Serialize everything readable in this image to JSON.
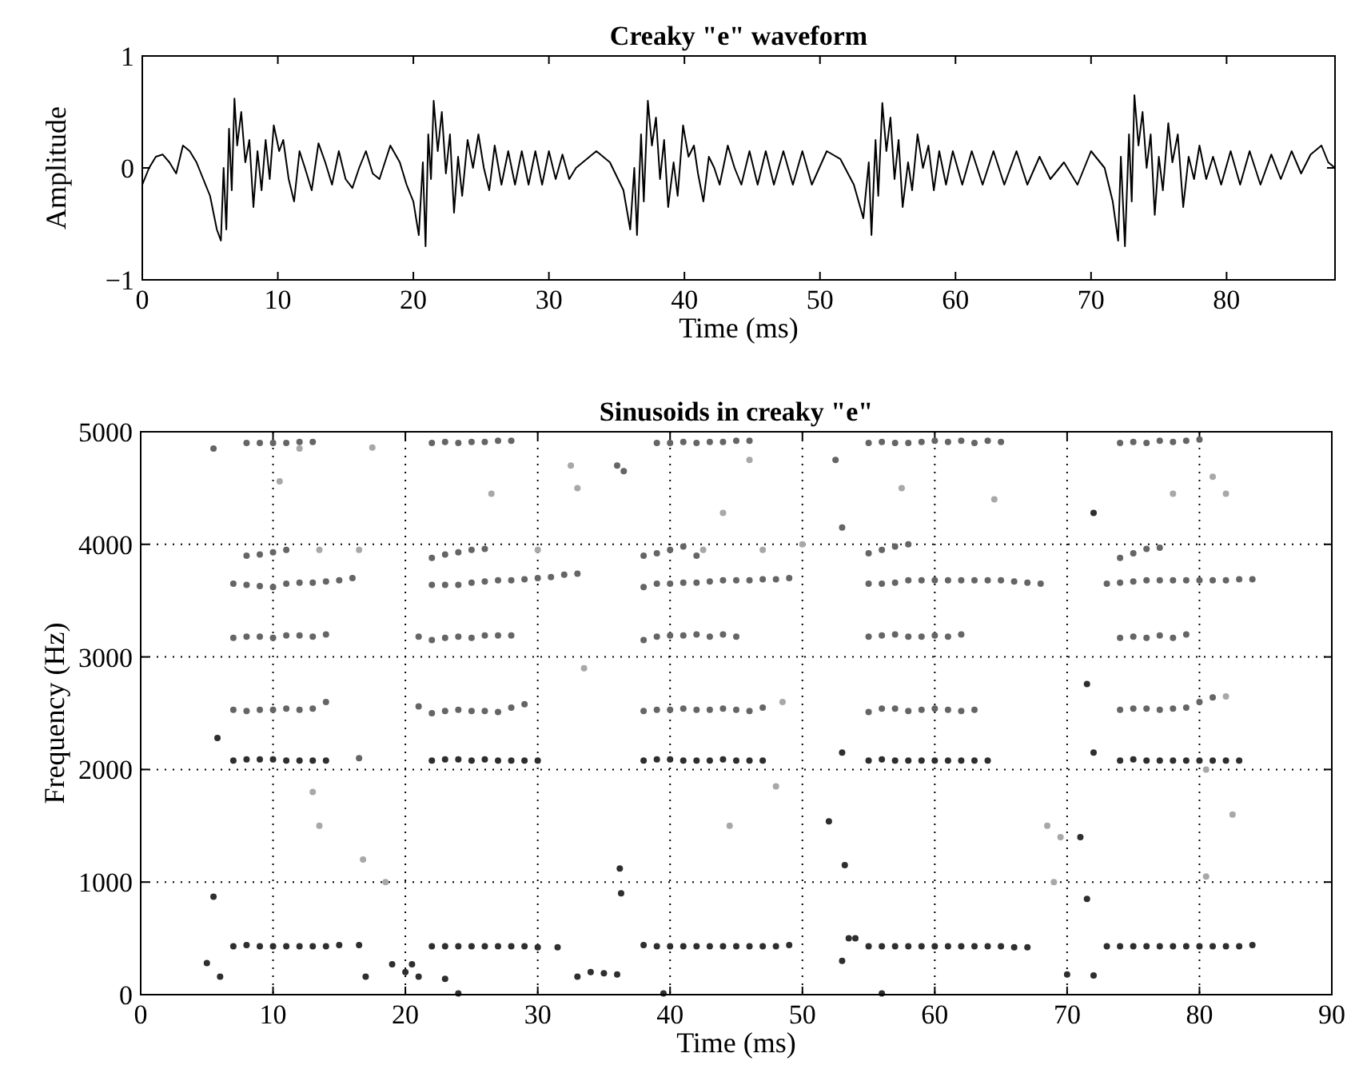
{
  "chart_data": [
    {
      "type": "line",
      "title": "Creaky \"e\" waveform",
      "xlabel": "Time (ms)",
      "ylabel": "Amplitude",
      "xlim": [
        0,
        88
      ],
      "xticks": [
        0,
        10,
        20,
        30,
        40,
        50,
        60,
        70,
        80
      ],
      "ylim": [
        -1,
        1
      ],
      "yticks": [
        {
          "value": -1,
          "label": "−1"
        },
        0,
        1
      ],
      "grid": false,
      "marker": "none",
      "line_style": "solid",
      "series": [
        {
          "color": "#000000",
          "x": [
            0,
            0.5,
            1,
            1.5,
            2,
            2.5,
            3,
            3.5,
            4,
            4.5,
            5,
            5.5,
            5.8,
            6,
            6.2,
            6.4,
            6.6,
            6.8,
            7,
            7.3,
            7.6,
            7.9,
            8.2,
            8.5,
            8.8,
            9.1,
            9.4,
            9.7,
            10.1,
            10.4,
            10.8,
            11.2,
            11.6,
            12,
            12.5,
            13,
            13.5,
            14,
            14.5,
            15,
            15.5,
            16,
            16.5,
            17,
            17.5,
            18.3,
            19,
            19.5,
            20,
            20.4,
            20.7,
            20.9,
            21.1,
            21.3,
            21.5,
            21.8,
            22.1,
            22.4,
            22.7,
            23,
            23.3,
            23.6,
            24,
            24.4,
            24.8,
            25.2,
            25.6,
            26,
            26.5,
            27,
            27.5,
            28,
            28.5,
            29,
            29.5,
            30,
            30.5,
            31,
            31.5,
            32,
            33.5,
            34.5,
            35.5,
            36,
            36.3,
            36.5,
            36.8,
            37,
            37.3,
            37.6,
            37.9,
            38.2,
            38.5,
            38.8,
            39.2,
            39.5,
            39.9,
            40.3,
            40.7,
            41,
            41.4,
            41.8,
            42.2,
            42.6,
            43.2,
            43.7,
            44.2,
            44.8,
            45.4,
            46,
            46.6,
            47.3,
            48,
            48.7,
            49.4,
            50.5,
            51.5,
            52.5,
            53.2,
            53.6,
            53.8,
            54.1,
            54.3,
            54.6,
            54.9,
            55.2,
            55.5,
            55.8,
            56.1,
            56.5,
            56.8,
            57.2,
            57.6,
            58,
            58.4,
            58.8,
            59.3,
            59.8,
            60.5,
            61.2,
            62,
            62.8,
            63.6,
            64.5,
            65.3,
            66.2,
            67,
            68,
            69,
            70,
            71,
            71.6,
            72,
            72.2,
            72.5,
            72.8,
            73,
            73.2,
            73.5,
            73.8,
            74.1,
            74.4,
            74.7,
            75,
            75.3,
            75.7,
            76,
            76.4,
            76.8,
            77.2,
            77.6,
            78,
            78.5,
            79,
            79.6,
            80.3,
            81,
            81.7,
            82.5,
            83.3,
            84,
            84.8,
            85.5,
            86.2,
            87,
            87.5,
            88
          ],
          "values": [
            -0.15,
            0,
            0.1,
            0.12,
            0.05,
            -0.05,
            0.2,
            0.15,
            0.05,
            -0.1,
            -0.25,
            -0.55,
            -0.65,
            0,
            -0.55,
            0.35,
            -0.2,
            0.62,
            0.2,
            0.5,
            0.05,
            0.25,
            -0.35,
            0.15,
            -0.2,
            0.25,
            -0.1,
            0.38,
            0.15,
            0.25,
            -0.1,
            -0.3,
            0.15,
            0,
            -0.2,
            0.22,
            0.05,
            -0.15,
            0.15,
            -0.1,
            -0.18,
            0,
            0.15,
            -0.05,
            -0.1,
            0.2,
            0.05,
            -0.15,
            -0.3,
            -0.6,
            0.05,
            -0.7,
            0.3,
            -0.1,
            0.6,
            0.15,
            0.5,
            -0.05,
            0.3,
            -0.4,
            0.1,
            -0.25,
            0.25,
            0,
            0.3,
            0,
            -0.2,
            0.2,
            -0.15,
            0.15,
            -0.15,
            0.15,
            -0.15,
            0.15,
            -0.15,
            0.15,
            -0.1,
            0.12,
            -0.1,
            0,
            0.15,
            0.05,
            -0.2,
            -0.55,
            0,
            -0.6,
            0.3,
            -0.3,
            0.6,
            0.2,
            0.45,
            -0.1,
            0.25,
            -0.35,
            0.05,
            -0.25,
            0.38,
            0.1,
            0.2,
            -0.05,
            -0.3,
            0.1,
            0,
            -0.15,
            0.2,
            0,
            -0.15,
            0.15,
            -0.15,
            0.15,
            -0.15,
            0.15,
            -0.15,
            0.15,
            -0.15,
            0.15,
            0.08,
            -0.15,
            -0.45,
            0.05,
            -0.6,
            0.25,
            -0.25,
            0.58,
            0.15,
            0.45,
            -0.1,
            0.25,
            -0.35,
            0.05,
            -0.2,
            0.3,
            0,
            0.2,
            -0.2,
            0.15,
            -0.15,
            0.15,
            -0.15,
            0.15,
            -0.15,
            0.15,
            -0.15,
            0.15,
            -0.15,
            0.1,
            -0.1,
            0.05,
            -0.15,
            0.15,
            0,
            -0.3,
            -0.65,
            0.1,
            -0.7,
            0.3,
            -0.3,
            0.65,
            0.2,
            0.5,
            0,
            0.3,
            -0.42,
            0.1,
            -0.2,
            0.4,
            0.05,
            0.3,
            -0.35,
            0.1,
            -0.1,
            0.2,
            -0.1,
            0.1,
            -0.15,
            0.15,
            -0.15,
            0.15,
            -0.15,
            0.12,
            -0.1,
            0.15,
            -0.05,
            0.12,
            0.2,
            0.05,
            0
          ]
        }
      ]
    },
    {
      "type": "scatter",
      "title": "Sinusoids in creaky \"e\"",
      "xlabel": "Time (ms)",
      "ylabel": "Frequency (Hz)",
      "xlim": [
        0,
        90
      ],
      "xticks": [
        0,
        10,
        20,
        30,
        40,
        50,
        60,
        70,
        80,
        90
      ],
      "ylim": [
        0,
        5000
      ],
      "yticks": [
        0,
        1000,
        2000,
        3000,
        4000,
        5000
      ],
      "grid": true,
      "marker": "circle",
      "series": [
        {
          "color": "#2e2e2e",
          "x": [
            7,
            8,
            9,
            10,
            11,
            12,
            13,
            14,
            15,
            16.5,
            22,
            23,
            24,
            25,
            26,
            27,
            28,
            29,
            30,
            31.5,
            38,
            39,
            40,
            41,
            42,
            43,
            44,
            45,
            46,
            47,
            48,
            49,
            55,
            56,
            57,
            58,
            59,
            60,
            61,
            62,
            63,
            64,
            65,
            66,
            67,
            73,
            74,
            75,
            76,
            77,
            78,
            79,
            80,
            81,
            82,
            83,
            84,
            7,
            8,
            9,
            10,
            11,
            12,
            13,
            14,
            22,
            23,
            24,
            25,
            26,
            27,
            28,
            29,
            30,
            38,
            39,
            40,
            41,
            42,
            43,
            44,
            45,
            46,
            47,
            55,
            56,
            57,
            58,
            59,
            60,
            61,
            62,
            63,
            64,
            74,
            75,
            76,
            77,
            78,
            79,
            80,
            81,
            82,
            83,
            5,
            5.5,
            5.8,
            6,
            17,
            19,
            20,
            20.5,
            21,
            23,
            24,
            33,
            34,
            35,
            36,
            36.2,
            36.3,
            39.5,
            52,
            53,
            53.2,
            53.5,
            54,
            56,
            70,
            71,
            71.5,
            72,
            71.5,
            72,
            72,
            53
          ],
          "values": [
            430,
            440,
            430,
            430,
            430,
            430,
            430,
            430,
            440,
            440,
            430,
            430,
            430,
            430,
            430,
            430,
            430,
            430,
            420,
            420,
            440,
            430,
            430,
            430,
            430,
            430,
            430,
            430,
            430,
            430,
            430,
            440,
            430,
            430,
            430,
            430,
            430,
            430,
            430,
            430,
            430,
            430,
            430,
            420,
            420,
            430,
            430,
            430,
            430,
            430,
            430,
            430,
            430,
            430,
            430,
            430,
            440,
            2080,
            2090,
            2090,
            2090,
            2080,
            2080,
            2080,
            2080,
            2080,
            2090,
            2090,
            2080,
            2090,
            2080,
            2080,
            2080,
            2080,
            2080,
            2090,
            2090,
            2080,
            2080,
            2080,
            2090,
            2080,
            2080,
            2080,
            2080,
            2090,
            2080,
            2080,
            2080,
            2080,
            2080,
            2080,
            2080,
            2080,
            2080,
            2090,
            2080,
            2080,
            2080,
            2080,
            2080,
            2080,
            2080,
            2080,
            280,
            870,
            2280,
            160,
            160,
            270,
            200,
            270,
            160,
            140,
            10,
            160,
            200,
            190,
            180,
            1120,
            900,
            10,
            1540,
            300,
            1150,
            500,
            500,
            10,
            180,
            1400,
            850,
            170,
            2760,
            2150,
            4280,
            2150
          ]
        },
        {
          "color": "#656565",
          "x": [
            7,
            8,
            9,
            10,
            11,
            12,
            13,
            14,
            15,
            16,
            22,
            23,
            24,
            25,
            26,
            27,
            28,
            29,
            30,
            31,
            32,
            33,
            38,
            39,
            40,
            41,
            42,
            43,
            44,
            45,
            46,
            47,
            48,
            49,
            55,
            56,
            57,
            58,
            59,
            60,
            61,
            62,
            63,
            64,
            65,
            66,
            67,
            68,
            73,
            74,
            75,
            76,
            77,
            78,
            79,
            80,
            81,
            82,
            83,
            84,
            7,
            8,
            9,
            10,
            11,
            12,
            13,
            14,
            21,
            22,
            23,
            24,
            25,
            26,
            27,
            28,
            29,
            38,
            39,
            40,
            41,
            42,
            43,
            44,
            45,
            46,
            47,
            55,
            56,
            57,
            58,
            59,
            60,
            61,
            62,
            63,
            74,
            75,
            76,
            77,
            78,
            79,
            80,
            81,
            7,
            8,
            9,
            10,
            11,
            12,
            13,
            14,
            21,
            22,
            23,
            24,
            25,
            26,
            27,
            28,
            38,
            39,
            40,
            41,
            42,
            43,
            44,
            45,
            55,
            56,
            57,
            58,
            59,
            60,
            61,
            62,
            74,
            75,
            76,
            77,
            78,
            79,
            8,
            9,
            10,
            11,
            12,
            13,
            22,
            23,
            24,
            25,
            26,
            27,
            28,
            39,
            40,
            41,
            42,
            43,
            44,
            45,
            46,
            55,
            56,
            57,
            58,
            59,
            60,
            61,
            62,
            63,
            64,
            65,
            74,
            75,
            76,
            77,
            78,
            79,
            80,
            8,
            9,
            10,
            11,
            22,
            23,
            24,
            25,
            26,
            38,
            39,
            40,
            41,
            42,
            55,
            56,
            57,
            58,
            74,
            75,
            76,
            77,
            5.5,
            16.5,
            36,
            36.5,
            52.5,
            53
          ],
          "values": [
            3650,
            3640,
            3630,
            3620,
            3650,
            3660,
            3660,
            3670,
            3680,
            3700,
            3640,
            3640,
            3640,
            3660,
            3670,
            3680,
            3680,
            3690,
            3700,
            3710,
            3730,
            3740,
            3620,
            3650,
            3650,
            3660,
            3660,
            3670,
            3680,
            3680,
            3680,
            3690,
            3690,
            3700,
            3650,
            3650,
            3660,
            3680,
            3680,
            3680,
            3680,
            3680,
            3680,
            3680,
            3680,
            3670,
            3660,
            3650,
            3650,
            3660,
            3670,
            3680,
            3680,
            3680,
            3680,
            3680,
            3680,
            3680,
            3690,
            3690,
            2530,
            2520,
            2530,
            2530,
            2540,
            2530,
            2540,
            2600,
            2560,
            2500,
            2520,
            2530,
            2520,
            2520,
            2510,
            2550,
            2580,
            2520,
            2530,
            2530,
            2540,
            2530,
            2530,
            2540,
            2530,
            2520,
            2550,
            2510,
            2540,
            2540,
            2520,
            2530,
            2540,
            2530,
            2520,
            2530,
            2530,
            2540,
            2540,
            2530,
            2540,
            2550,
            2600,
            2640,
            3170,
            3180,
            3180,
            3170,
            3190,
            3190,
            3180,
            3200,
            3180,
            3150,
            3170,
            3180,
            3170,
            3190,
            3190,
            3190,
            3150,
            3180,
            3190,
            3190,
            3200,
            3180,
            3200,
            3180,
            3180,
            3190,
            3200,
            3180,
            3180,
            3190,
            3180,
            3200,
            3170,
            3180,
            3170,
            3190,
            3170,
            3200,
            4900,
            4900,
            4900,
            4900,
            4910,
            4910,
            4900,
            4910,
            4900,
            4910,
            4910,
            4920,
            4920,
            4900,
            4900,
            4910,
            4900,
            4910,
            4910,
            4920,
            4920,
            4900,
            4910,
            4900,
            4900,
            4910,
            4920,
            4910,
            4920,
            4900,
            4920,
            4910,
            4900,
            4910,
            4900,
            4920,
            4910,
            4920,
            4930,
            3900,
            3910,
            3930,
            3950,
            3880,
            3910,
            3930,
            3950,
            3960,
            3900,
            3920,
            3950,
            3980,
            3900,
            3920,
            3950,
            3980,
            4000,
            3880,
            3920,
            3960,
            3970,
            4850,
            2100,
            4700,
            4650,
            4750,
            4150
          ]
        },
        {
          "color": "#a8a8a8",
          "x": [
            12,
            10.5,
            13.5,
            16.5,
            17.5,
            13,
            13.5,
            16.8,
            18.5,
            32.5,
            33,
            33.5,
            26.5,
            30,
            42.5,
            44,
            46,
            47,
            44.5,
            48,
            48.5,
            50,
            57.5,
            64.5,
            69,
            69.5,
            68.5,
            78,
            81,
            82,
            82.5,
            80.5,
            82,
            80.5
          ],
          "values": [
            4850,
            4560,
            3950,
            3950,
            4860,
            1800,
            1500,
            1200,
            1000,
            4700,
            4500,
            2900,
            4450,
            3950,
            3950,
            4280,
            4750,
            3950,
            1500,
            1850,
            2600,
            4000,
            4500,
            4400,
            1000,
            1400,
            1500,
            4450,
            4600,
            4450,
            1600,
            1050,
            2650,
            2000
          ]
        }
      ]
    }
  ]
}
